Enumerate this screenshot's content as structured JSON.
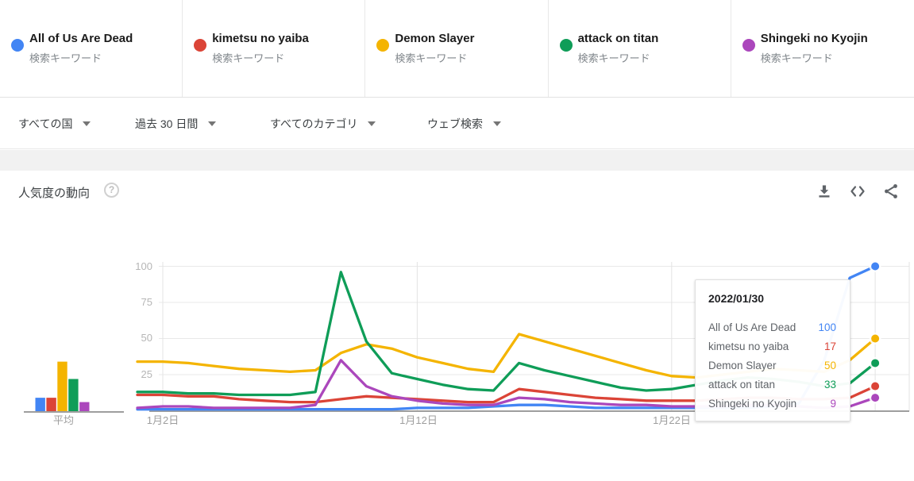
{
  "terms": [
    {
      "label": "All of Us Are Dead",
      "sublabel": "検索キーワード",
      "color": "#4285f4"
    },
    {
      "label": "kimetsu no yaiba",
      "sublabel": "検索キーワード",
      "color": "#db4437"
    },
    {
      "label": "Demon Slayer",
      "sublabel": "検索キーワード",
      "color": "#f4b400"
    },
    {
      "label": "attack on titan",
      "sublabel": "検索キーワード",
      "color": "#0f9d58"
    },
    {
      "label": "Shingeki no Kyojin",
      "sublabel": "検索キーワード",
      "color": "#ab47bc"
    }
  ],
  "filters": [
    {
      "label": "すべての国"
    },
    {
      "label": "過去 30 日間"
    },
    {
      "label": "すべてのカテゴリ"
    },
    {
      "label": "ウェブ検索"
    }
  ],
  "section": {
    "title": "人気度の動向",
    "help": "?"
  },
  "chart_data": {
    "type": "line",
    "title": "人気度の動向",
    "x_axis": "日付 (2022年1月)",
    "x_days": [
      1,
      2,
      3,
      4,
      5,
      6,
      7,
      8,
      9,
      10,
      11,
      12,
      13,
      14,
      15,
      16,
      17,
      18,
      19,
      20,
      21,
      22,
      23,
      24,
      25,
      26,
      27,
      28,
      29,
      30
    ],
    "x_tick_labels": [
      "1月2日",
      "1月12日",
      "1月22日"
    ],
    "x_tick_days": [
      2,
      12,
      22
    ],
    "y_ticks": [
      100,
      75,
      50,
      25
    ],
    "ylim": [
      0,
      100
    ],
    "grid": true,
    "series": [
      {
        "name": "All of Us Are Dead",
        "color": "#4285f4",
        "values": [
          1,
          1,
          1,
          1,
          1,
          1,
          1,
          1,
          1,
          1,
          1,
          2,
          2,
          2,
          3,
          4,
          4,
          3,
          2,
          2,
          2,
          2,
          2,
          2,
          2,
          3,
          5,
          35,
          92,
          100
        ]
      },
      {
        "name": "kimetsu no yaiba",
        "color": "#db4437",
        "values": [
          11,
          11,
          10,
          10,
          8,
          7,
          6,
          6,
          8,
          10,
          9,
          8,
          7,
          6,
          6,
          15,
          13,
          11,
          9,
          8,
          7,
          7,
          7,
          8,
          9,
          9,
          8,
          8,
          9,
          17
        ]
      },
      {
        "name": "Demon Slayer",
        "color": "#f4b400",
        "values": [
          34,
          34,
          33,
          31,
          29,
          28,
          27,
          28,
          40,
          46,
          43,
          37,
          33,
          29,
          27,
          53,
          48,
          43,
          38,
          33,
          28,
          24,
          23,
          25,
          27,
          29,
          28,
          27,
          35,
          50
        ]
      },
      {
        "name": "attack on titan",
        "color": "#0f9d58",
        "values": [
          13,
          13,
          12,
          12,
          11,
          11,
          11,
          13,
          96,
          48,
          26,
          22,
          18,
          15,
          14,
          33,
          28,
          24,
          20,
          16,
          14,
          15,
          18,
          21,
          23,
          22,
          20,
          17,
          19,
          33
        ]
      },
      {
        "name": "Shingeki no Kyojin",
        "color": "#ab47bc",
        "values": [
          2,
          3,
          3,
          2,
          2,
          2,
          2,
          4,
          35,
          17,
          10,
          7,
          5,
          4,
          4,
          9,
          8,
          6,
          5,
          4,
          4,
          3,
          3,
          3,
          4,
          4,
          3,
          2,
          3,
          9
        ]
      }
    ],
    "average_label": "平均",
    "averages": [
      9,
      9,
      34,
      22,
      6
    ],
    "tooltip": {
      "date": "2022/01/30",
      "rows": [
        {
          "label": "All of Us Are Dead",
          "value": 100,
          "color": "#4285f4"
        },
        {
          "label": "kimetsu no yaiba",
          "value": 17,
          "color": "#db4437"
        },
        {
          "label": "Demon Slayer",
          "value": 50,
          "color": "#f4b400"
        },
        {
          "label": "attack on titan",
          "value": 33,
          "color": "#0f9d58"
        },
        {
          "label": "Shingeki no Kyojin",
          "value": 9,
          "color": "#ab47bc"
        }
      ]
    }
  }
}
